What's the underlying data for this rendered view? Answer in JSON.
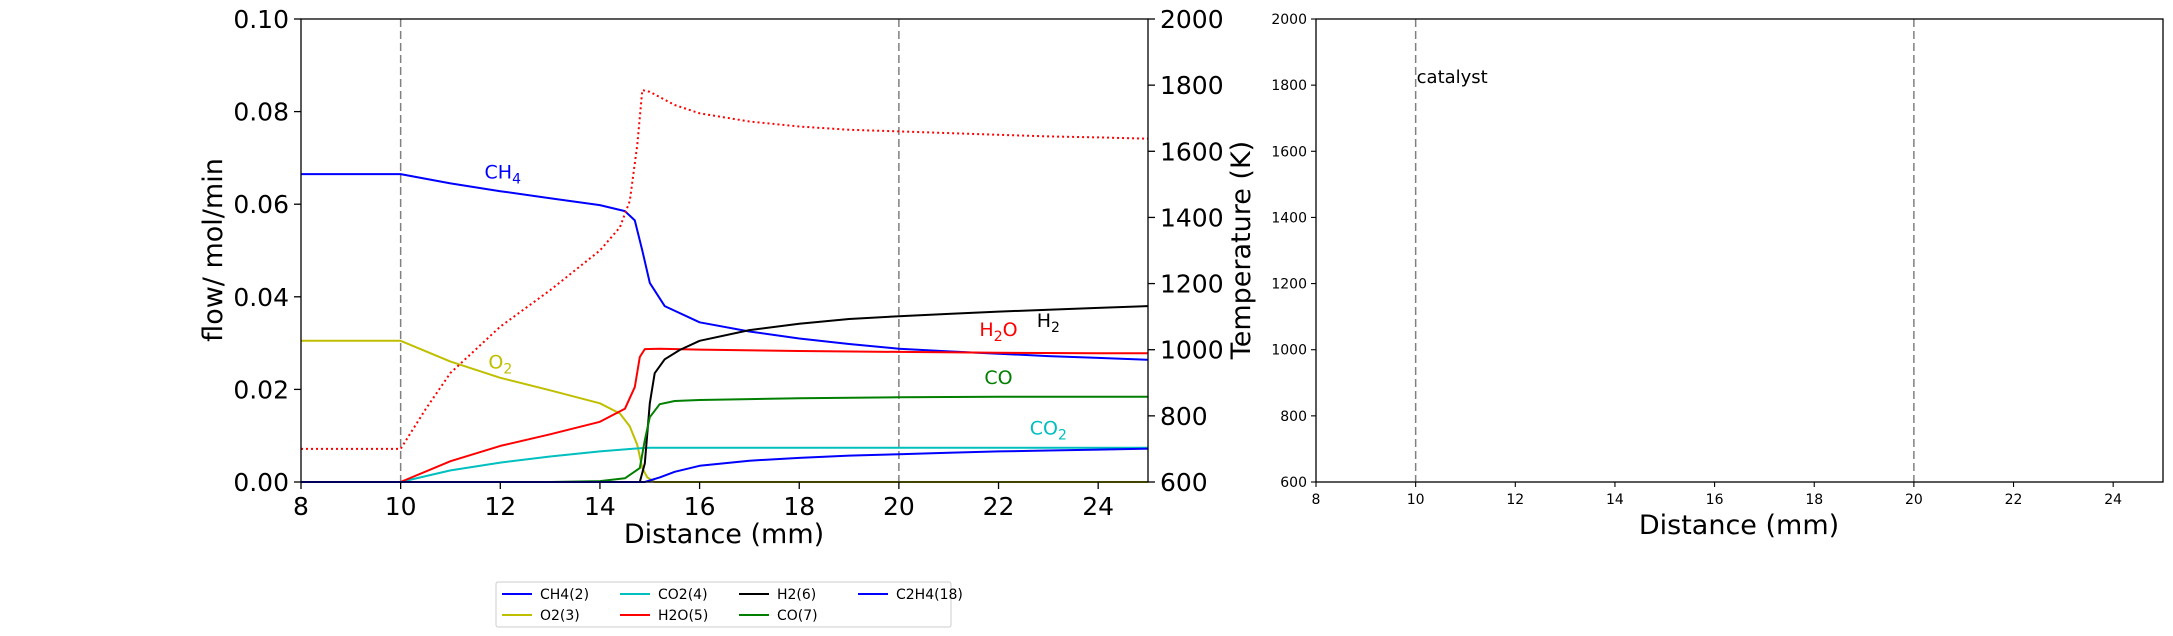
{
  "chart_data": [
    {
      "type": "line",
      "xlabel": "Distance (mm)",
      "ylabel": "flow/ mol/min",
      "y2label": "Temperature (K)",
      "xlim": [
        8,
        25
      ],
      "ylim": [
        0,
        0.1
      ],
      "y2lim": [
        600,
        2000
      ],
      "xticks": [
        "8",
        "10",
        "12",
        "14",
        "16",
        "18",
        "20",
        "22",
        "24"
      ],
      "yticks": [
        "0.00",
        "0.02",
        "0.04",
        "0.06",
        "0.08",
        "0.10"
      ],
      "y2ticks": [
        "600",
        "800",
        "1000",
        "1200",
        "1400",
        "1600",
        "1800",
        "2000"
      ],
      "vlines": [
        10,
        20
      ],
      "grid": false,
      "series": [
        {
          "name": "CH4(2)",
          "color": "#0000ff",
          "style": "solid",
          "x": [
            8,
            10,
            11,
            12,
            13,
            14,
            14.5,
            14.7,
            14.85,
            15,
            15.3,
            16,
            17,
            18,
            19,
            20,
            21,
            22,
            23,
            24,
            25
          ],
          "y": [
            0.0665,
            0.0665,
            0.0645,
            0.0628,
            0.0613,
            0.0598,
            0.0585,
            0.0565,
            0.05,
            0.043,
            0.038,
            0.0345,
            0.0325,
            0.031,
            0.0298,
            0.0288,
            0.0282,
            0.0277,
            0.0272,
            0.0268,
            0.0264
          ]
        },
        {
          "name": "O2(3)",
          "color": "#bfbf00",
          "style": "solid",
          "x": [
            8,
            10,
            11,
            12,
            13,
            14,
            14.4,
            14.6,
            14.75,
            14.85,
            14.95,
            15.1,
            16,
            20,
            25
          ],
          "y": [
            0.0305,
            0.0305,
            0.026,
            0.0225,
            0.0198,
            0.017,
            0.0148,
            0.012,
            0.008,
            0.003,
            0.001,
            0.0,
            0.0,
            0.0,
            0.0
          ]
        },
        {
          "name": "CO2(4)",
          "color": "#00bfbf",
          "style": "solid",
          "x": [
            8,
            10,
            11,
            12,
            13,
            14,
            14.8,
            15,
            16,
            20,
            25
          ],
          "y": [
            0.0,
            0.0,
            0.0025,
            0.0042,
            0.0055,
            0.0066,
            0.0073,
            0.0074,
            0.0074,
            0.0074,
            0.0074
          ]
        },
        {
          "name": "H2O(5)",
          "color": "#ff0000",
          "style": "solid",
          "x": [
            8,
            10,
            11,
            12,
            13,
            14,
            14.5,
            14.7,
            14.8,
            14.9,
            15.2,
            16,
            18,
            20,
            22,
            24,
            25
          ],
          "y": [
            0.0,
            0.0,
            0.0045,
            0.0078,
            0.0103,
            0.013,
            0.0158,
            0.0205,
            0.027,
            0.0287,
            0.0288,
            0.0286,
            0.0283,
            0.0281,
            0.0279,
            0.0278,
            0.0278
          ]
        },
        {
          "name": "H2(6)",
          "color": "#000000",
          "style": "solid",
          "x": [
            8,
            10,
            14,
            14.8,
            14.9,
            15.0,
            15.1,
            15.3,
            15.6,
            16,
            17,
            18,
            19,
            20,
            21,
            22,
            23,
            24,
            25
          ],
          "y": [
            0.0,
            0.0,
            0.0,
            0.0,
            0.004,
            0.017,
            0.0235,
            0.0265,
            0.0285,
            0.0305,
            0.0328,
            0.0342,
            0.0352,
            0.0358,
            0.0363,
            0.0368,
            0.0372,
            0.0376,
            0.038
          ]
        },
        {
          "name": "CO(7)",
          "color": "#007f00",
          "style": "solid",
          "x": [
            8,
            10,
            13,
            14,
            14.5,
            14.8,
            14.9,
            15.0,
            15.2,
            15.5,
            16,
            17,
            18,
            20,
            22,
            25
          ],
          "y": [
            0.0,
            0.0,
            0.0,
            0.0002,
            0.0008,
            0.003,
            0.009,
            0.014,
            0.0168,
            0.0175,
            0.0177,
            0.0179,
            0.0181,
            0.0183,
            0.0184,
            0.0184
          ]
        },
        {
          "name": "C2H4(18)",
          "color": "#0000ff",
          "style": "solid",
          "x": [
            8,
            14.9,
            15.2,
            15.5,
            16,
            17,
            18,
            19,
            20,
            21,
            22,
            23,
            24,
            25
          ],
          "y": [
            0.0,
            0.0,
            0.001,
            0.0022,
            0.0035,
            0.0046,
            0.0052,
            0.0057,
            0.006,
            0.0063,
            0.0066,
            0.0068,
            0.007,
            0.0072
          ]
        },
        {
          "name": "Temperature",
          "color": "#ff0000",
          "style": "dotted",
          "axis": "right",
          "x": [
            8,
            10,
            10.5,
            11,
            12,
            13,
            14,
            14.4,
            14.6,
            14.75,
            14.85,
            15.0,
            15.5,
            16,
            17,
            18,
            19,
            20,
            21,
            22,
            23,
            24,
            25
          ],
          "y": [
            700,
            700,
            820,
            930,
            1070,
            1180,
            1300,
            1370,
            1450,
            1620,
            1785,
            1780,
            1740,
            1715,
            1690,
            1675,
            1665,
            1660,
            1655,
            1650,
            1645,
            1642,
            1638
          ]
        }
      ],
      "annotations": [
        {
          "base": "CH",
          "sub": "4",
          "x": 12.05,
          "y": 0.0655,
          "color": "#0000ff"
        },
        {
          "base": "O",
          "sub": "2",
          "x": 12.0,
          "y": 0.0245,
          "color": "#bfbf00"
        },
        {
          "base": "H",
          "sub": "2",
          "mid": "O",
          "x": 22.0,
          "y": 0.0315,
          "color": "#ff0000"
        },
        {
          "base": "H",
          "sub": "2",
          "x": 23.0,
          "y": 0.0335,
          "color": "#000000"
        },
        {
          "base": "CO",
          "sub": "",
          "x": 22.0,
          "y": 0.0212,
          "color": "#007f00"
        },
        {
          "base": "CO",
          "sub": "2",
          "x": 23.0,
          "y": 0.0103,
          "color": "#00bfbf"
        }
      ]
    },
    {
      "type": "line",
      "xlabel": "Distance (mm)",
      "xlim": [
        8,
        25
      ],
      "ylim": [
        600,
        2000
      ],
      "xticks": [
        "8",
        "10",
        "12",
        "14",
        "16",
        "18",
        "20",
        "22",
        "24"
      ],
      "yticks": [
        "600",
        "800",
        "1000",
        "1200",
        "1400",
        "1600",
        "1800",
        "2000"
      ],
      "vlines": [
        10,
        20
      ],
      "annotations": [
        {
          "text": "catalyst",
          "x": 10,
          "y": 1830
        }
      ],
      "series": []
    }
  ],
  "legend": {
    "placement": "bottom-center",
    "entries": [
      {
        "label": "CH4(2)",
        "color": "#0000ff"
      },
      {
        "label": "O2(3)",
        "color": "#bfbf00"
      },
      {
        "label": "CO2(4)",
        "color": "#00bfbf"
      },
      {
        "label": "H2O(5)",
        "color": "#ff0000"
      },
      {
        "label": "H2(6)",
        "color": "#000000"
      },
      {
        "label": "CO(7)",
        "color": "#007f00"
      },
      {
        "label": "C2H4(18)",
        "color": "#0000ff"
      }
    ]
  }
}
